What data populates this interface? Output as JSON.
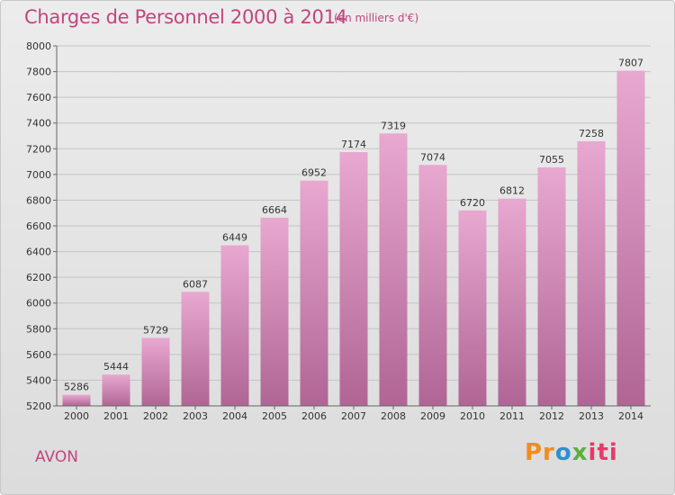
{
  "header": {
    "title": "Charges de Personnel 2000 à 2014",
    "subtitle": "(en milliers d'€)"
  },
  "footer": {
    "place": "AVON",
    "logo": "Proxiti"
  },
  "colors": {
    "accent": "#c2457f",
    "bar_top": "#e8a8d0",
    "bar_bottom": "#b06595",
    "background": "#e4e4e4"
  },
  "chart_data": {
    "type": "bar",
    "title": "Charges de Personnel 2000 à 2014",
    "subtitle": "(en milliers d'€)",
    "xlabel": "",
    "ylabel": "",
    "categories": [
      "2000",
      "2001",
      "2002",
      "2003",
      "2004",
      "2005",
      "2006",
      "2007",
      "2008",
      "2009",
      "2010",
      "2011",
      "2012",
      "2013",
      "2014"
    ],
    "values": [
      5286,
      5444,
      5729,
      6087,
      6449,
      6664,
      6952,
      7174,
      7319,
      7074,
      6720,
      6812,
      7055,
      7258,
      7807
    ],
    "data_labels": [
      "5286",
      "5444",
      "5729",
      "6087",
      "6449",
      "6664",
      "6952",
      "7174",
      "7319",
      "7074",
      "6720",
      "6812",
      "7055",
      "7258",
      "7807"
    ],
    "ylim": [
      5200,
      8000
    ],
    "yticks": [
      5200,
      5400,
      5600,
      5800,
      6000,
      6200,
      6400,
      6600,
      6800,
      7000,
      7200,
      7400,
      7600,
      7800,
      8000
    ],
    "grid": true,
    "legend": "none"
  }
}
